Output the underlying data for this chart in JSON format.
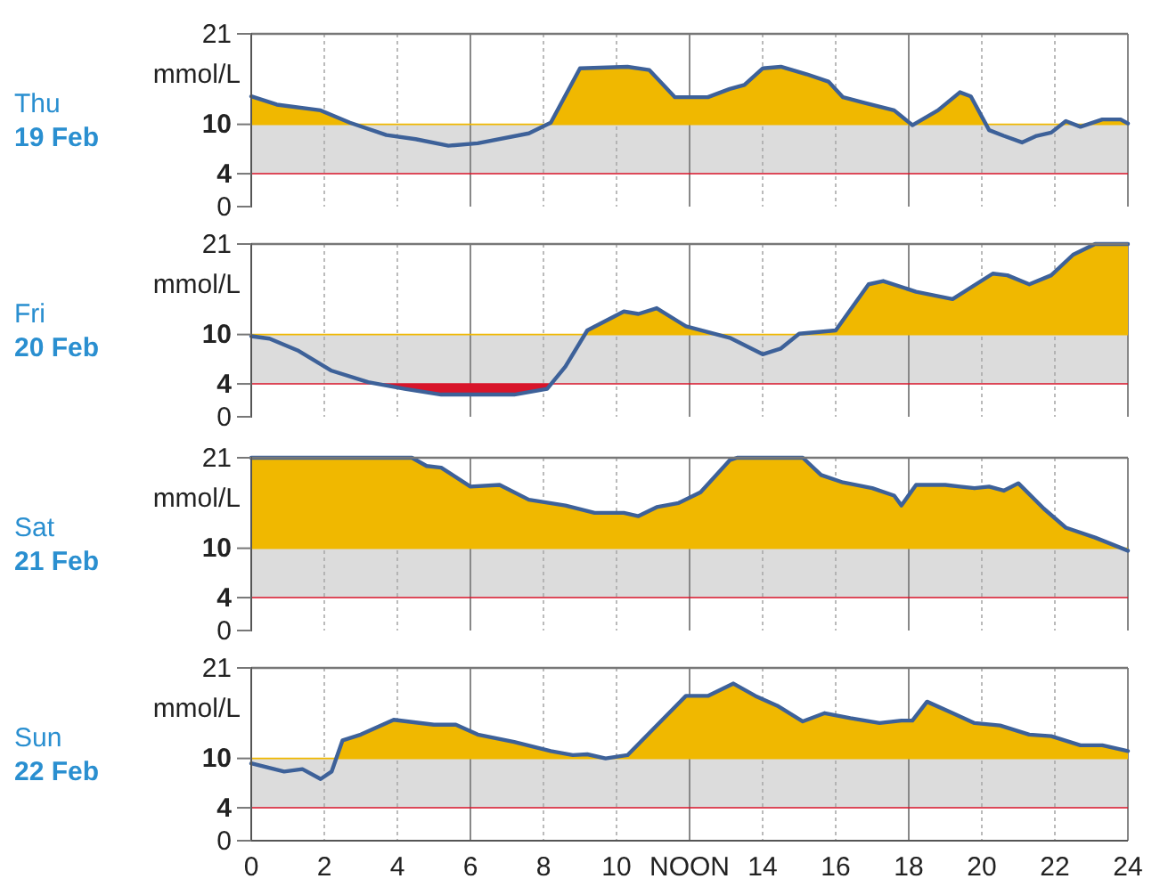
{
  "chart_data": [
    {
      "type": "line",
      "title": "Thu",
      "subtitle": "19 Feb",
      "ylabel": "mmol/L",
      "xlim": [
        0,
        24
      ],
      "ylim": [
        0,
        21
      ],
      "yticks": [
        0,
        4,
        10,
        21
      ],
      "xticks": [
        0,
        2,
        4,
        6,
        8,
        10,
        12,
        14,
        16,
        18,
        20,
        22,
        24
      ],
      "grid": "x",
      "tick_labels": "y",
      "bands": [
        {
          "axis": "y",
          "from": 4,
          "to": 10,
          "color": "#dcdcdc"
        }
      ],
      "ref_lines": [
        {
          "axis": "y",
          "value": 10,
          "color": "#f0b800"
        },
        {
          "axis": "y",
          "value": 4,
          "color": "#d8152a"
        }
      ],
      "series": [
        {
          "color": "#3d6199",
          "x": [
            0,
            0.7,
            1.9,
            2.7,
            3.7,
            4.5,
            5.4,
            6.2,
            7.6,
            8.2,
            9.0,
            10.3,
            10.9,
            11.6,
            12.5,
            13.1,
            13.5,
            14.0,
            14.5,
            15.2,
            15.8,
            16.2,
            16.8,
            17.6,
            18.1,
            18.8,
            19.4,
            19.7,
            20.2,
            20.6,
            21.1,
            21.5,
            21.9,
            22.3,
            22.7,
            23.3,
            23.8,
            24
          ],
          "values": [
            13.4,
            12.4,
            11.7,
            10.2,
            8.7,
            8.2,
            7.4,
            7.7,
            8.9,
            10.2,
            16.8,
            17.0,
            16.6,
            13.3,
            13.3,
            14.3,
            14.8,
            16.8,
            17.0,
            16.1,
            15.2,
            13.3,
            12.6,
            11.7,
            9.9,
            11.7,
            13.9,
            13.4,
            9.3,
            8.6,
            7.8,
            8.6,
            9.0,
            10.4,
            9.7,
            10.6,
            10.6,
            10.1
          ]
        }
      ]
    },
    {
      "type": "line",
      "title": "Fri",
      "subtitle": "20 Feb",
      "ylabel": "mmol/L",
      "xlim": [
        0,
        24
      ],
      "ylim": [
        0,
        21
      ],
      "yticks": [
        0,
        4,
        10,
        21
      ],
      "xticks": [
        0,
        2,
        4,
        6,
        8,
        10,
        12,
        14,
        16,
        18,
        20,
        22,
        24
      ],
      "grid": "x",
      "tick_labels": "y",
      "bands": [
        {
          "axis": "y",
          "from": 4,
          "to": 10,
          "color": "#dcdcdc"
        }
      ],
      "ref_lines": [
        {
          "axis": "y",
          "value": 10,
          "color": "#f0b800"
        },
        {
          "axis": "y",
          "value": 4,
          "color": "#d8152a"
        }
      ],
      "series": [
        {
          "color": "#3d6199",
          "x": [
            0,
            0.5,
            1.3,
            2.2,
            3.2,
            4.2,
            5.2,
            7.2,
            8.1,
            8.6,
            9.2,
            10.2,
            10.6,
            11.1,
            11.9,
            13.1,
            14.0,
            14.5,
            15.0,
            16.0,
            16.9,
            17.3,
            18.2,
            19.2,
            20.3,
            20.7,
            21.3,
            21.9,
            22.5,
            23.1,
            24
          ],
          "values": [
            9.8,
            9.5,
            8.0,
            5.6,
            4.2,
            3.4,
            2.7,
            2.7,
            3.4,
            6.1,
            10.5,
            12.8,
            12.5,
            13.2,
            11.0,
            9.6,
            7.6,
            8.3,
            10.1,
            10.5,
            16.1,
            16.5,
            15.2,
            14.3,
            17.4,
            17.2,
            16.1,
            17.2,
            19.7,
            21,
            21
          ]
        }
      ]
    },
    {
      "type": "line",
      "title": "Sat",
      "subtitle": "21 Feb",
      "ylabel": "mmol/L",
      "xlim": [
        0,
        24
      ],
      "ylim": [
        0,
        21
      ],
      "yticks": [
        0,
        4,
        10,
        21
      ],
      "xticks": [
        0,
        2,
        4,
        6,
        8,
        10,
        12,
        14,
        16,
        18,
        20,
        22,
        24
      ],
      "grid": "x",
      "tick_labels": "y",
      "bands": [
        {
          "axis": "y",
          "from": 4,
          "to": 10,
          "color": "#dcdcdc"
        }
      ],
      "ref_lines": [
        {
          "axis": "y",
          "value": 10,
          "color": "#f0b800"
        },
        {
          "axis": "y",
          "value": 4,
          "color": "#d8152a"
        }
      ],
      "series": [
        {
          "color": "#3d6199",
          "x": [
            0,
            4.4,
            4.8,
            5.2,
            6.0,
            6.8,
            7.6,
            8.6,
            9.4,
            10.2,
            10.6,
            11.1,
            11.7,
            12.3,
            13.1,
            13.3,
            15.1,
            15.6,
            16.2,
            17.0,
            17.6,
            17.8,
            18.2,
            19.0,
            19.4,
            19.8,
            20.2,
            20.6,
            21.0,
            21.7,
            22.3,
            23.1,
            24
          ],
          "values": [
            21,
            21,
            20.0,
            19.8,
            17.5,
            17.7,
            15.9,
            15.2,
            14.3,
            14.3,
            13.9,
            15.0,
            15.5,
            16.8,
            20.7,
            21,
            21,
            18.9,
            18.0,
            17.3,
            16.4,
            15.2,
            17.7,
            17.7,
            17.5,
            17.3,
            17.5,
            17.0,
            17.9,
            14.8,
            12.5,
            11.3,
            9.7
          ]
        }
      ]
    },
    {
      "type": "line",
      "title": "Sun",
      "subtitle": "22 Feb",
      "ylabel": "mmol/L",
      "xlim": [
        0,
        24
      ],
      "ylim": [
        0,
        21
      ],
      "yticks": [
        0,
        4,
        10,
        21
      ],
      "xticks": [
        0,
        2,
        4,
        6,
        8,
        10,
        {
          "value": 12,
          "label": "NOON"
        },
        14,
        16,
        18,
        20,
        22,
        24
      ],
      "grid": "x",
      "bands": [
        {
          "axis": "y",
          "from": 4,
          "to": 10,
          "color": "#dcdcdc"
        }
      ],
      "ref_lines": [
        {
          "axis": "y",
          "value": 10,
          "color": "#f0b800"
        },
        {
          "axis": "y",
          "value": 4,
          "color": "#d8152a"
        }
      ],
      "series": [
        {
          "color": "#3d6199",
          "x": [
            0,
            0.9,
            1.4,
            1.9,
            2.2,
            2.5,
            3.0,
            3.9,
            5.0,
            5.6,
            6.2,
            7.2,
            8.2,
            8.8,
            9.2,
            9.7,
            10.3,
            10.9,
            11.9,
            12.5,
            13.2,
            13.8,
            14.4,
            15.1,
            15.7,
            16.4,
            17.2,
            17.8,
            18.1,
            18.5,
            19.2,
            19.8,
            20.5,
            21.3,
            21.9,
            22.7,
            23.3,
            24
          ],
          "values": [
            9.4,
            8.4,
            8.7,
            7.5,
            8.4,
            12.2,
            12.9,
            14.7,
            14.1,
            14.1,
            12.9,
            12.0,
            10.9,
            10.4,
            10.5,
            10.0,
            10.4,
            13.1,
            17.6,
            17.6,
            19.1,
            17.6,
            16.4,
            14.5,
            15.5,
            14.9,
            14.3,
            14.6,
            14.6,
            16.9,
            15.5,
            14.3,
            14.0,
            12.9,
            12.7,
            11.6,
            11.6,
            10.9
          ]
        }
      ]
    }
  ]
}
